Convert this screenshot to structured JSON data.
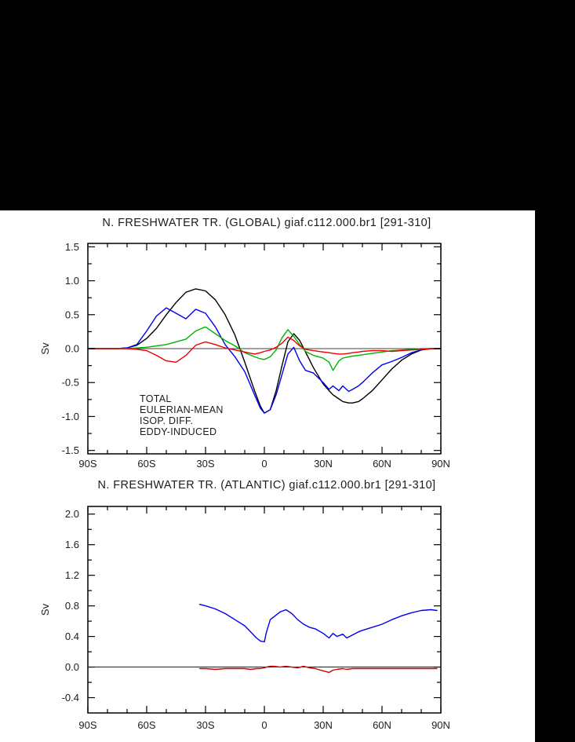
{
  "page": {
    "background": "#000000",
    "panel_background": "#ffffff",
    "text_color": "#1c1c1c"
  },
  "chart_data": [
    {
      "type": "line",
      "title": "N. FRESHWATER TR. (GLOBAL) giaf.c112.000.br1 [291-310]",
      "ylabel": "Sv",
      "xlim": [
        -90,
        90
      ],
      "ylim": [
        -1.55,
        1.55
      ],
      "grid": false,
      "zero_line": true,
      "legend_position": "bottom-left-inside",
      "x_minor_step": 10,
      "y_minor_step": 0.25,
      "xticks": [
        {
          "v": -90,
          "label": "90S"
        },
        {
          "v": -60,
          "label": "60S"
        },
        {
          "v": -30,
          "label": "30S"
        },
        {
          "v": 0,
          "label": "0"
        },
        {
          "v": 30,
          "label": "30N"
        },
        {
          "v": 60,
          "label": "60N"
        },
        {
          "v": 90,
          "label": "90N"
        }
      ],
      "yticks": [
        {
          "v": -1.5,
          "label": "-1.5"
        },
        {
          "v": -1.0,
          "label": "-1.0"
        },
        {
          "v": -0.5,
          "label": "-0.5"
        },
        {
          "v": 0.0,
          "label": "0.0"
        },
        {
          "v": 0.5,
          "label": "0.5"
        },
        {
          "v": 1.0,
          "label": "1.0"
        },
        {
          "v": 1.5,
          "label": "1.5"
        }
      ],
      "series": [
        {
          "name": "TOTAL",
          "color": "#000000",
          "x": [
            -90,
            -80,
            -75,
            -70,
            -65,
            -60,
            -55,
            -50,
            -45,
            -40,
            -35,
            -30,
            -25,
            -20,
            -15,
            -10,
            -5,
            -2,
            0,
            3,
            6,
            9,
            12,
            15,
            18,
            21,
            25,
            30,
            33,
            35,
            38,
            40,
            43,
            45,
            48,
            50,
            55,
            60,
            65,
            70,
            75,
            80,
            85,
            90
          ],
          "y": [
            0,
            0,
            0,
            0.01,
            0.05,
            0.15,
            0.3,
            0.5,
            0.68,
            0.83,
            0.88,
            0.85,
            0.72,
            0.5,
            0.2,
            -0.2,
            -0.62,
            -0.85,
            -0.95,
            -0.9,
            -0.62,
            -0.25,
            0.1,
            0.22,
            0.12,
            -0.05,
            -0.28,
            -0.52,
            -0.62,
            -0.68,
            -0.74,
            -0.78,
            -0.8,
            -0.8,
            -0.78,
            -0.74,
            -0.62,
            -0.46,
            -0.3,
            -0.17,
            -0.08,
            -0.02,
            0,
            0
          ]
        },
        {
          "name": "EULERIAN-MEAN",
          "color": "#0000ee",
          "x": [
            -90,
            -80,
            -75,
            -70,
            -65,
            -60,
            -55,
            -50,
            -45,
            -40,
            -35,
            -30,
            -25,
            -20,
            -15,
            -10,
            -5,
            -2,
            0,
            3,
            6,
            9,
            12,
            15,
            18,
            21,
            25,
            30,
            33,
            35,
            38,
            40,
            43,
            45,
            48,
            50,
            55,
            60,
            65,
            70,
            75,
            80,
            85,
            90
          ],
          "y": [
            0,
            0,
            0,
            0.01,
            0.06,
            0.26,
            0.48,
            0.6,
            0.52,
            0.44,
            0.58,
            0.52,
            0.32,
            0.06,
            -0.12,
            -0.34,
            -0.68,
            -0.88,
            -0.95,
            -0.9,
            -0.68,
            -0.38,
            -0.08,
            0.02,
            -0.18,
            -0.32,
            -0.36,
            -0.5,
            -0.6,
            -0.55,
            -0.62,
            -0.55,
            -0.63,
            -0.6,
            -0.55,
            -0.5,
            -0.36,
            -0.24,
            -0.19,
            -0.13,
            -0.06,
            -0.02,
            0,
            0
          ]
        },
        {
          "name": "ISOP. DIFF.",
          "color": "#00b400",
          "x": [
            -90,
            -80,
            -75,
            -70,
            -65,
            -60,
            -55,
            -50,
            -45,
            -40,
            -35,
            -30,
            -25,
            -20,
            -15,
            -10,
            -5,
            -2,
            0,
            3,
            6,
            9,
            12,
            15,
            18,
            21,
            25,
            30,
            33,
            35,
            38,
            40,
            43,
            45,
            48,
            50,
            55,
            60,
            65,
            70,
            75,
            80,
            85,
            90
          ],
          "y": [
            0,
            0,
            0,
            0,
            0.01,
            0.02,
            0.04,
            0.06,
            0.1,
            0.14,
            0.26,
            0.32,
            0.22,
            0.12,
            0.04,
            -0.06,
            -0.12,
            -0.15,
            -0.16,
            -0.12,
            -0.02,
            0.16,
            0.28,
            0.18,
            0.06,
            -0.04,
            -0.1,
            -0.14,
            -0.2,
            -0.32,
            -0.18,
            -0.14,
            -0.12,
            -0.11,
            -0.1,
            -0.09,
            -0.07,
            -0.05,
            -0.03,
            -0.02,
            -0.01,
            0,
            0,
            0
          ]
        },
        {
          "name": "EDDY-INDUCED",
          "color": "#ee0000",
          "x": [
            -90,
            -80,
            -75,
            -70,
            -65,
            -60,
            -55,
            -50,
            -45,
            -40,
            -35,
            -30,
            -25,
            -20,
            -15,
            -10,
            -5,
            -2,
            0,
            3,
            6,
            9,
            12,
            15,
            18,
            21,
            25,
            30,
            33,
            35,
            38,
            40,
            43,
            45,
            48,
            50,
            55,
            60,
            65,
            70,
            75,
            80,
            85,
            90
          ],
          "y": [
            0,
            0,
            0,
            0,
            -0.01,
            -0.03,
            -0.1,
            -0.18,
            -0.2,
            -0.1,
            0.05,
            0.1,
            0.06,
            0.01,
            -0.02,
            -0.05,
            -0.08,
            -0.06,
            -0.04,
            -0.02,
            0.02,
            0.08,
            0.17,
            0.12,
            0.04,
            -0.01,
            -0.03,
            -0.05,
            -0.06,
            -0.07,
            -0.08,
            -0.08,
            -0.07,
            -0.06,
            -0.05,
            -0.04,
            -0.03,
            -0.03,
            -0.04,
            -0.03,
            -0.02,
            -0.01,
            0,
            0
          ]
        }
      ]
    },
    {
      "type": "line",
      "title": "N. FRESHWATER TR. (ATLANTIC) giaf.c112.000.br1 [291-310]",
      "ylabel": "Sv",
      "xlim": [
        -90,
        90
      ],
      "ylim": [
        -0.6,
        2.1
      ],
      "grid": false,
      "zero_line": true,
      "legend_position": "none",
      "x_minor_step": 10,
      "y_minor_step": 0.2,
      "xticks": [
        {
          "v": -90,
          "label": "90S"
        },
        {
          "v": -60,
          "label": "60S"
        },
        {
          "v": -30,
          "label": "30S"
        },
        {
          "v": 0,
          "label": "0"
        },
        {
          "v": 30,
          "label": "30N"
        },
        {
          "v": 60,
          "label": "60N"
        },
        {
          "v": 90,
          "label": "90N"
        }
      ],
      "yticks": [
        {
          "v": -0.4,
          "label": "-0.4"
        },
        {
          "v": 0.0,
          "label": "0.0"
        },
        {
          "v": 0.4,
          "label": "0.4"
        },
        {
          "v": 0.8,
          "label": "0.8"
        },
        {
          "v": 1.2,
          "label": "1.2"
        },
        {
          "v": 1.6,
          "label": "1.6"
        },
        {
          "v": 2.0,
          "label": "2.0"
        }
      ],
      "series": [
        {
          "name": "EULERIAN-MEAN",
          "color": "#0000ee",
          "x": [
            -33,
            -30,
            -25,
            -20,
            -15,
            -10,
            -7,
            -4,
            -2,
            0,
            1,
            3,
            5,
            8,
            11,
            14,
            17,
            20,
            23,
            26,
            30,
            33,
            35,
            37,
            40,
            42,
            45,
            48,
            50,
            55,
            60,
            65,
            70,
            75,
            80,
            85,
            88
          ],
          "y": [
            0.82,
            0.8,
            0.76,
            0.7,
            0.62,
            0.54,
            0.46,
            0.38,
            0.34,
            0.33,
            0.45,
            0.62,
            0.66,
            0.72,
            0.75,
            0.7,
            0.62,
            0.56,
            0.52,
            0.5,
            0.44,
            0.38,
            0.44,
            0.4,
            0.43,
            0.38,
            0.42,
            0.46,
            0.48,
            0.52,
            0.56,
            0.62,
            0.67,
            0.71,
            0.74,
            0.75,
            0.74
          ]
        },
        {
          "name": "EDDY-INDUCED",
          "color": "#cc0000",
          "x": [
            -33,
            -30,
            -25,
            -20,
            -15,
            -10,
            -7,
            -4,
            -2,
            0,
            1,
            3,
            5,
            8,
            11,
            14,
            17,
            20,
            23,
            26,
            30,
            33,
            35,
            37,
            40,
            42,
            45,
            48,
            50,
            55,
            60,
            65,
            70,
            75,
            80,
            85,
            88
          ],
          "y": [
            -0.02,
            -0.02,
            -0.03,
            -0.02,
            -0.02,
            -0.02,
            -0.03,
            -0.02,
            -0.02,
            -0.01,
            0.0,
            0.01,
            0.01,
            0.0,
            0.01,
            0.0,
            -0.01,
            0.01,
            -0.01,
            -0.02,
            -0.05,
            -0.07,
            -0.04,
            -0.03,
            -0.02,
            -0.03,
            -0.02,
            -0.02,
            -0.02,
            -0.02,
            -0.02,
            -0.02,
            -0.02,
            -0.02,
            -0.02,
            -0.02,
            -0.02
          ]
        }
      ]
    }
  ]
}
